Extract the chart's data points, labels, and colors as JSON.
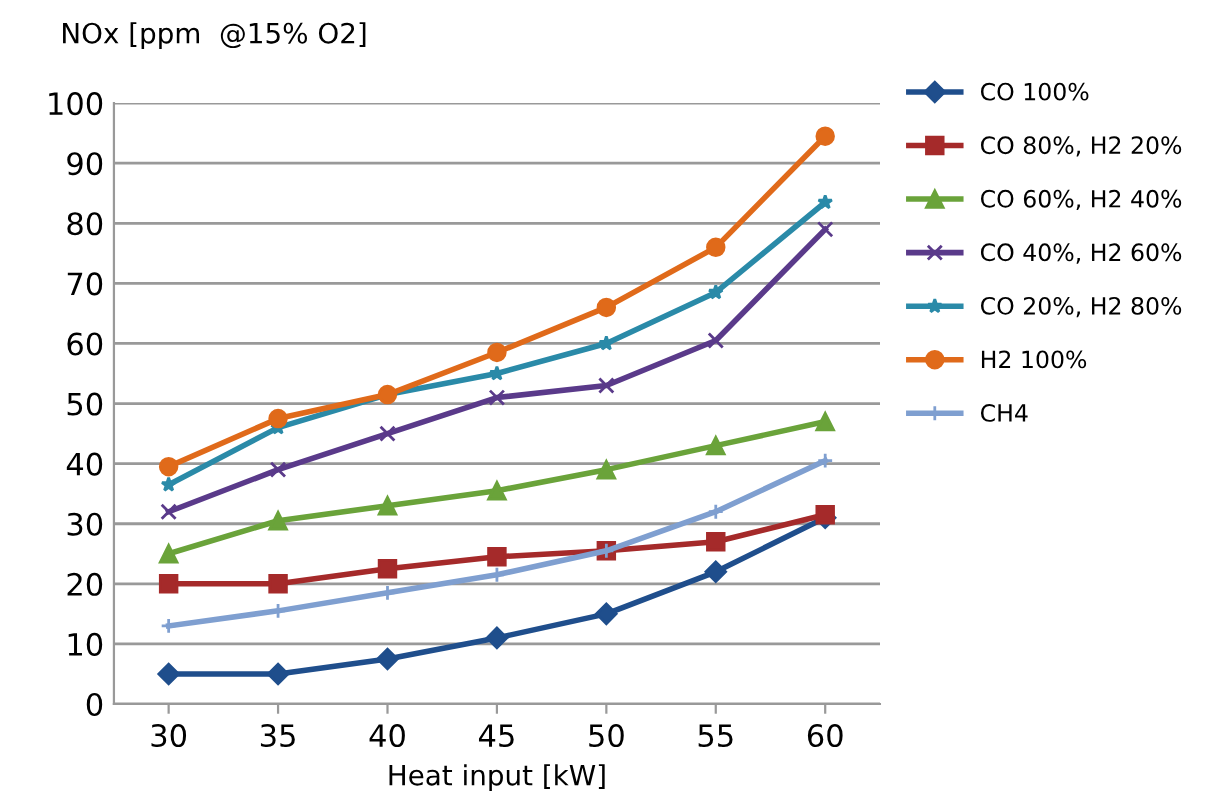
{
  "chart_data": {
    "type": "line",
    "ylabel": "NOx [ppm  @15% O2]",
    "xlabel": "Heat input [kW]",
    "categories": [
      "30",
      "35",
      "40",
      "45",
      "50",
      "55",
      "60"
    ],
    "ylim": [
      0,
      100
    ],
    "yticks": [
      0,
      10,
      20,
      30,
      40,
      50,
      60,
      70,
      80,
      90,
      100
    ],
    "grid": "y",
    "legend": "top right",
    "series": [
      {
        "name": "CO 100%",
        "color": "#1f4e8c",
        "marker": "diamond",
        "values": [
          5,
          5,
          7.5,
          11,
          15,
          22,
          31
        ]
      },
      {
        "name": "CO 80%, H2 20%",
        "color": "#a52a2a",
        "marker": "square",
        "values": [
          20,
          20,
          22.5,
          24.5,
          25.5,
          27,
          31.5
        ]
      },
      {
        "name": "CO 60%, H2 40%",
        "color": "#6aa33a",
        "marker": "triangle",
        "values": [
          25,
          30.5,
          33,
          35.5,
          39,
          43,
          47
        ]
      },
      {
        "name": "CO 40%, H2 60%",
        "color": "#5a3a8a",
        "marker": "cross",
        "values": [
          32,
          39,
          45,
          51,
          53,
          60.5,
          79
        ]
      },
      {
        "name": "CO 20%, H2 80%",
        "color": "#2a8aa8",
        "marker": "star",
        "values": [
          36.5,
          46,
          51.5,
          55,
          60,
          68.5,
          83.5
        ]
      },
      {
        "name": "H2 100%",
        "color": "#e06a1a",
        "marker": "circle",
        "values": [
          39.5,
          47.5,
          51.5,
          58.5,
          66,
          76,
          94.5
        ]
      },
      {
        "name": "CH4",
        "color": "#7f9fd0",
        "marker": "plus",
        "values": [
          13,
          15.5,
          18.5,
          21.5,
          25.5,
          32,
          40.5
        ]
      }
    ]
  }
}
